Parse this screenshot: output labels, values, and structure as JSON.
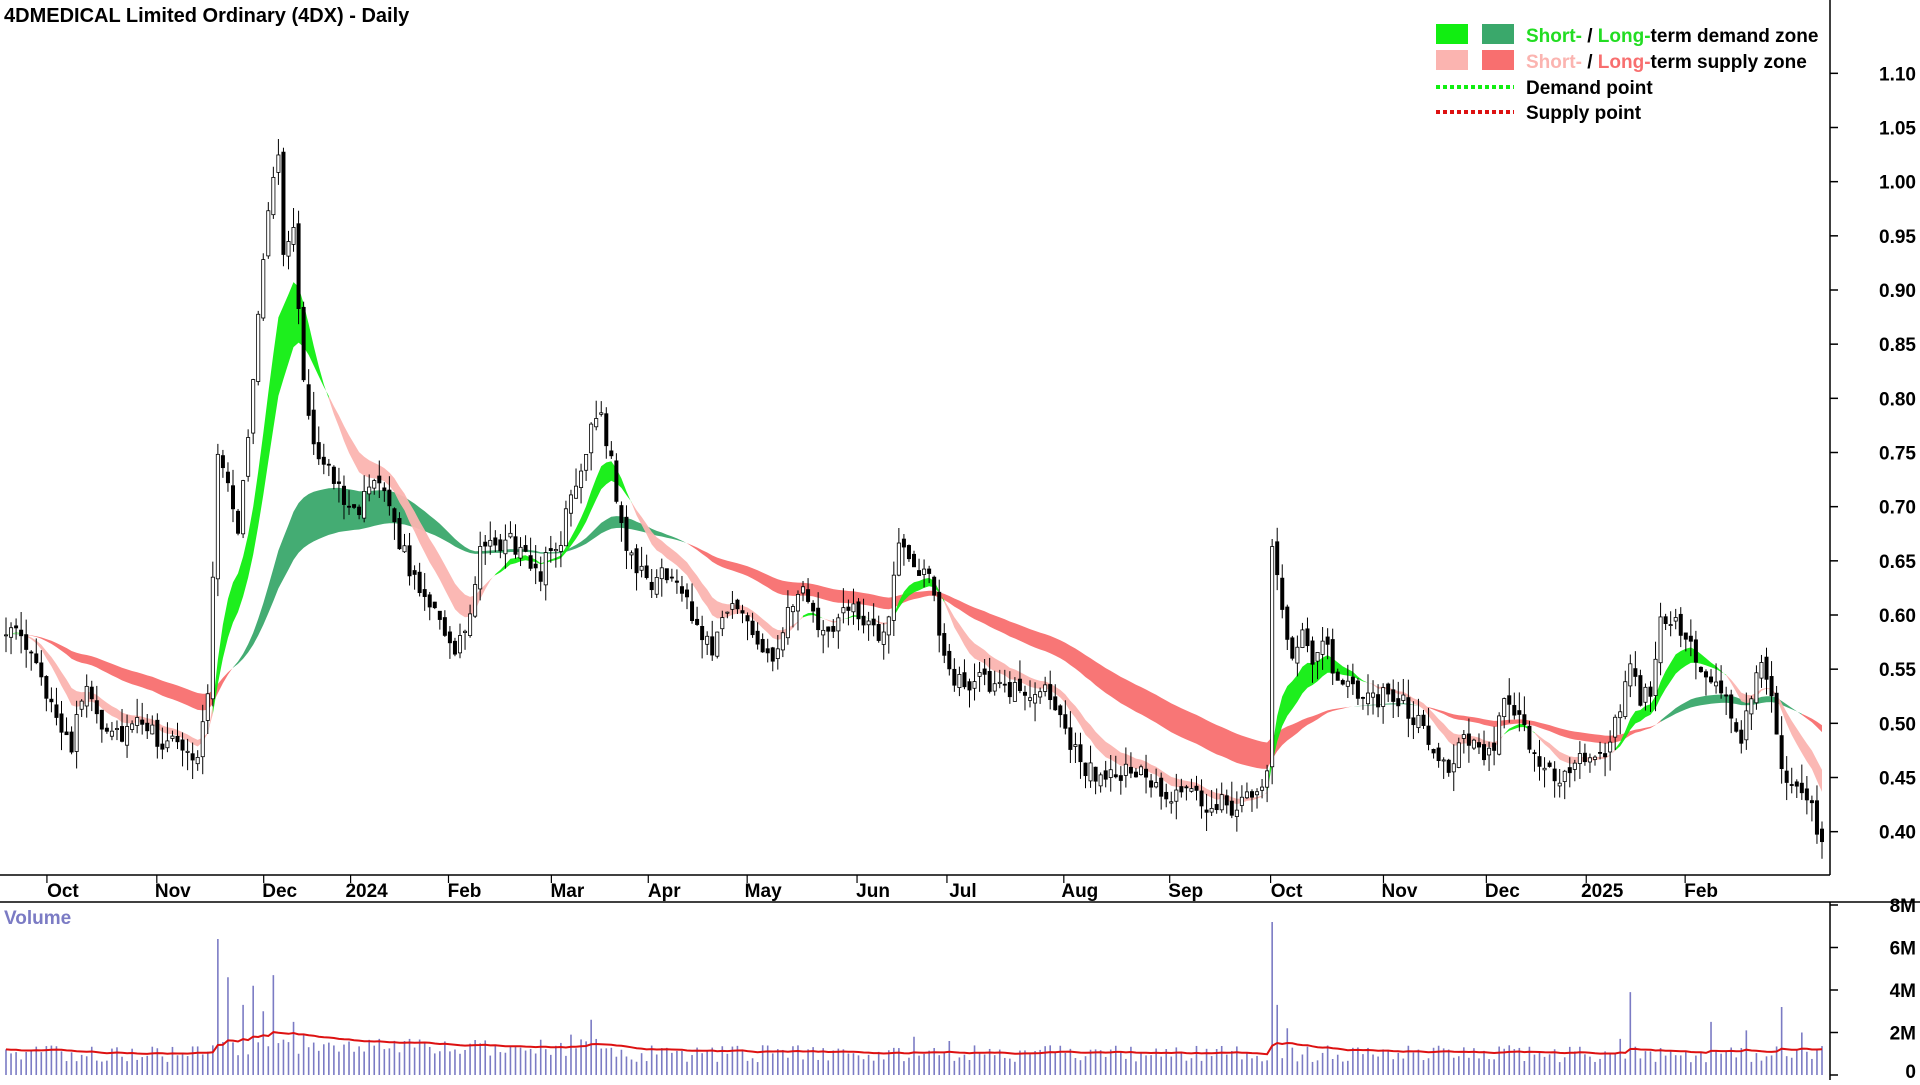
{
  "colors": {
    "candle_up": "#ffffff",
    "candle_down": "#000000",
    "short_demand": "#11ee11",
    "long_demand": "#3aa86b",
    "short_supply": "#fbb4b0",
    "long_supply": "#f86f6f",
    "overlap": "#f47a2a",
    "demand_point": "#11ee11",
    "supply_point": "#dd1111",
    "volume_bar": "#7b7bc4",
    "volume_avg": "#dd1111",
    "short_text": "#22dd22",
    "short_supply_text": "#fbb4b0",
    "long_supply_text": "#f86f6f"
  },
  "chart_data": {
    "type": "candlestick",
    "title": "4DMEDICAL Limited Ordinary (4DX) - Daily",
    "ylim": [
      0.36,
      1.14
    ],
    "y_ticks": [
      "1.10",
      "1.05",
      "1.00",
      "0.95",
      "0.90",
      "0.85",
      "0.80",
      "0.75",
      "0.70",
      "0.65",
      "0.60",
      "0.55",
      "0.50",
      "0.45",
      "0.40"
    ],
    "x_ticks": [
      "Oct",
      "Nov",
      "Dec",
      "2024",
      "Feb",
      "Mar",
      "Apr",
      "May",
      "Jun",
      "Jul",
      "Aug",
      "Sep",
      "Oct",
      "Nov",
      "Dec",
      "2025",
      "Feb"
    ],
    "legend": {
      "demand_zone": {
        "short": "Short-",
        "sep": " / ",
        "long": "Long-",
        "rest": "term demand zone"
      },
      "supply_zone": {
        "short": "Short-",
        "sep": " / ",
        "long": "Long-",
        "rest": "term supply zone"
      },
      "demand_point": "Demand point",
      "supply_point": "Supply point"
    },
    "price_path": [
      [
        0,
        0.59
      ],
      [
        4,
        0.57
      ],
      [
        7,
        0.54
      ],
      [
        10,
        0.51
      ],
      [
        13,
        0.48
      ],
      [
        16,
        0.54
      ],
      [
        19,
        0.5
      ],
      [
        23,
        0.49
      ],
      [
        27,
        0.5
      ],
      [
        31,
        0.48
      ],
      [
        35,
        0.48
      ],
      [
        38,
        0.47
      ],
      [
        40,
        0.53
      ],
      [
        42,
        0.75
      ],
      [
        44,
        0.72
      ],
      [
        46,
        0.68
      ],
      [
        48,
        0.76
      ],
      [
        50,
        0.88
      ],
      [
        52,
        0.98
      ],
      [
        54,
        1.02
      ],
      [
        55,
        0.94
      ],
      [
        57,
        0.95
      ],
      [
        59,
        0.82
      ],
      [
        61,
        0.76
      ],
      [
        64,
        0.73
      ],
      [
        67,
        0.71
      ],
      [
        70,
        0.7
      ],
      [
        73,
        0.72
      ],
      [
        76,
        0.7
      ],
      [
        78,
        0.67
      ],
      [
        80,
        0.64
      ],
      [
        83,
        0.62
      ],
      [
        86,
        0.6
      ],
      [
        89,
        0.56
      ],
      [
        92,
        0.6
      ],
      [
        94,
        0.66
      ],
      [
        97,
        0.66
      ],
      [
        100,
        0.67
      ],
      [
        103,
        0.65
      ],
      [
        106,
        0.64
      ],
      [
        108,
        0.66
      ],
      [
        110,
        0.67
      ],
      [
        112,
        0.71
      ],
      [
        114,
        0.73
      ],
      [
        116,
        0.78
      ],
      [
        118,
        0.79
      ],
      [
        120,
        0.74
      ],
      [
        122,
        0.68
      ],
      [
        125,
        0.64
      ],
      [
        128,
        0.63
      ],
      [
        131,
        0.64
      ],
      [
        134,
        0.62
      ],
      [
        137,
        0.59
      ],
      [
        140,
        0.57
      ],
      [
        143,
        0.61
      ],
      [
        146,
        0.6
      ],
      [
        149,
        0.58
      ],
      [
        152,
        0.56
      ],
      [
        155,
        0.6
      ],
      [
        158,
        0.62
      ],
      [
        161,
        0.59
      ],
      [
        164,
        0.58
      ],
      [
        167,
        0.61
      ],
      [
        170,
        0.59
      ],
      [
        173,
        0.58
      ],
      [
        175,
        0.59
      ],
      [
        177,
        0.67
      ],
      [
        179,
        0.66
      ],
      [
        181,
        0.63
      ],
      [
        183,
        0.64
      ],
      [
        185,
        0.58
      ],
      [
        187,
        0.55
      ],
      [
        190,
        0.53
      ],
      [
        193,
        0.55
      ],
      [
        196,
        0.53
      ],
      [
        199,
        0.53
      ],
      [
        202,
        0.53
      ],
      [
        205,
        0.53
      ],
      [
        208,
        0.52
      ],
      [
        211,
        0.48
      ],
      [
        214,
        0.46
      ],
      [
        217,
        0.45
      ],
      [
        220,
        0.45
      ],
      [
        223,
        0.46
      ],
      [
        226,
        0.45
      ],
      [
        229,
        0.43
      ],
      [
        232,
        0.43
      ],
      [
        235,
        0.44
      ],
      [
        238,
        0.42
      ],
      [
        241,
        0.43
      ],
      [
        244,
        0.42
      ],
      [
        246,
        0.43
      ],
      [
        248,
        0.44
      ],
      [
        250,
        0.45
      ],
      [
        251,
        0.67
      ],
      [
        253,
        0.61
      ],
      [
        255,
        0.56
      ],
      [
        257,
        0.59
      ],
      [
        259,
        0.56
      ],
      [
        261,
        0.58
      ],
      [
        263,
        0.55
      ],
      [
        265,
        0.53
      ],
      [
        268,
        0.53
      ],
      [
        271,
        0.52
      ],
      [
        274,
        0.53
      ],
      [
        277,
        0.52
      ],
      [
        280,
        0.5
      ],
      [
        283,
        0.48
      ],
      [
        286,
        0.46
      ],
      [
        289,
        0.49
      ],
      [
        292,
        0.47
      ],
      [
        295,
        0.47
      ],
      [
        297,
        0.53
      ],
      [
        299,
        0.51
      ],
      [
        302,
        0.48
      ],
      [
        305,
        0.46
      ],
      [
        308,
        0.45
      ],
      [
        311,
        0.46
      ],
      [
        314,
        0.47
      ],
      [
        317,
        0.47
      ],
      [
        320,
        0.51
      ],
      [
        322,
        0.56
      ],
      [
        324,
        0.52
      ],
      [
        326,
        0.53
      ],
      [
        328,
        0.6
      ],
      [
        330,
        0.6
      ],
      [
        332,
        0.59
      ],
      [
        334,
        0.58
      ],
      [
        336,
        0.54
      ],
      [
        338,
        0.53
      ],
      [
        340,
        0.53
      ],
      [
        342,
        0.51
      ],
      [
        344,
        0.49
      ],
      [
        346,
        0.53
      ],
      [
        348,
        0.55
      ],
      [
        350,
        0.52
      ],
      [
        352,
        0.46
      ],
      [
        354,
        0.44
      ],
      [
        356,
        0.43
      ],
      [
        358,
        0.42
      ],
      [
        360,
        0.39
      ]
    ],
    "volume": {
      "title": "Volume",
      "ylim": [
        0,
        8000000
      ],
      "y_ticks": [
        "8M",
        "6M",
        "4M",
        "2M",
        "0"
      ],
      "spikes_m": [
        [
          42,
          6.4
        ],
        [
          44,
          4.6
        ],
        [
          47,
          3.3
        ],
        [
          49,
          4.2
        ],
        [
          51,
          3.0
        ],
        [
          53,
          4.7
        ],
        [
          57,
          2.5
        ],
        [
          59,
          1.9
        ],
        [
          74,
          1.7
        ],
        [
          79,
          1.6
        ],
        [
          112,
          1.9
        ],
        [
          116,
          2.6
        ],
        [
          150,
          1.4
        ],
        [
          180,
          1.8
        ],
        [
          187,
          1.6
        ],
        [
          251,
          7.2
        ],
        [
          252,
          3.3
        ],
        [
          254,
          2.2
        ],
        [
          320,
          1.7
        ],
        [
          322,
          3.9
        ],
        [
          338,
          2.5
        ],
        [
          345,
          2.1
        ],
        [
          352,
          3.2
        ],
        [
          356,
          2.0
        ]
      ]
    }
  }
}
